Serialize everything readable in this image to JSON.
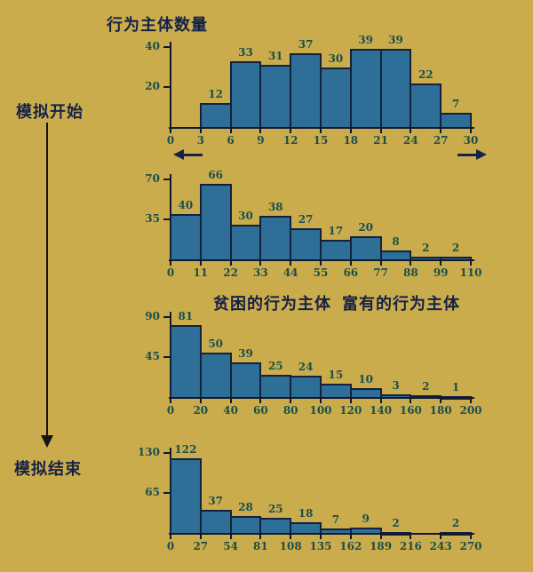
{
  "title": "行为主体数量",
  "timeline": {
    "start_label": "模拟开始",
    "end_label": "模拟结束"
  },
  "axis_legend": {
    "left_label": "贫困的行为主体",
    "right_label": "富有的行为主体"
  },
  "colors": {
    "background": "#cbac4c",
    "bar_fill": "#2d6f96",
    "bar_border": "#13203e",
    "axis": "#10182e",
    "number_label": "#194f4c",
    "text": "#142247"
  },
  "chart_data": [
    {
      "type": "bar",
      "title": "行为主体数量 (模拟开始)",
      "x_ticks": [
        0,
        3,
        6,
        9,
        12,
        15,
        18,
        21,
        24,
        27,
        30
      ],
      "y_ticks": [
        20,
        40
      ],
      "ylim": [
        0,
        40
      ],
      "values": [
        0,
        12,
        33,
        31,
        37,
        30,
        39,
        39,
        22,
        7
      ],
      "grid": false,
      "legend": "none"
    },
    {
      "type": "bar",
      "title": "",
      "x_ticks": [
        0,
        11,
        22,
        33,
        44,
        55,
        66,
        77,
        88,
        99,
        110
      ],
      "y_ticks": [
        35,
        70
      ],
      "ylim": [
        0,
        70
      ],
      "values": [
        40,
        66,
        30,
        38,
        27,
        17,
        20,
        8,
        2,
        2
      ],
      "grid": false,
      "legend": "none"
    },
    {
      "type": "bar",
      "title": "",
      "x_ticks": [
        0,
        20,
        40,
        60,
        80,
        100,
        120,
        140,
        160,
        180,
        200
      ],
      "y_ticks": [
        45,
        90
      ],
      "ylim": [
        0,
        90
      ],
      "values": [
        81,
        50,
        39,
        25,
        24,
        15,
        10,
        3,
        2,
        1
      ],
      "grid": false,
      "legend": "none"
    },
    {
      "type": "bar",
      "title": "行为主体数量 (模拟结束)",
      "x_ticks": [
        0,
        27,
        54,
        81,
        108,
        135,
        162,
        189,
        216,
        243,
        270
      ],
      "y_ticks": [
        65,
        130
      ],
      "ylim": [
        0,
        130
      ],
      "values": [
        122,
        37,
        28,
        25,
        18,
        7,
        9,
        2,
        0,
        2
      ],
      "grid": false,
      "legend": "none"
    }
  ]
}
